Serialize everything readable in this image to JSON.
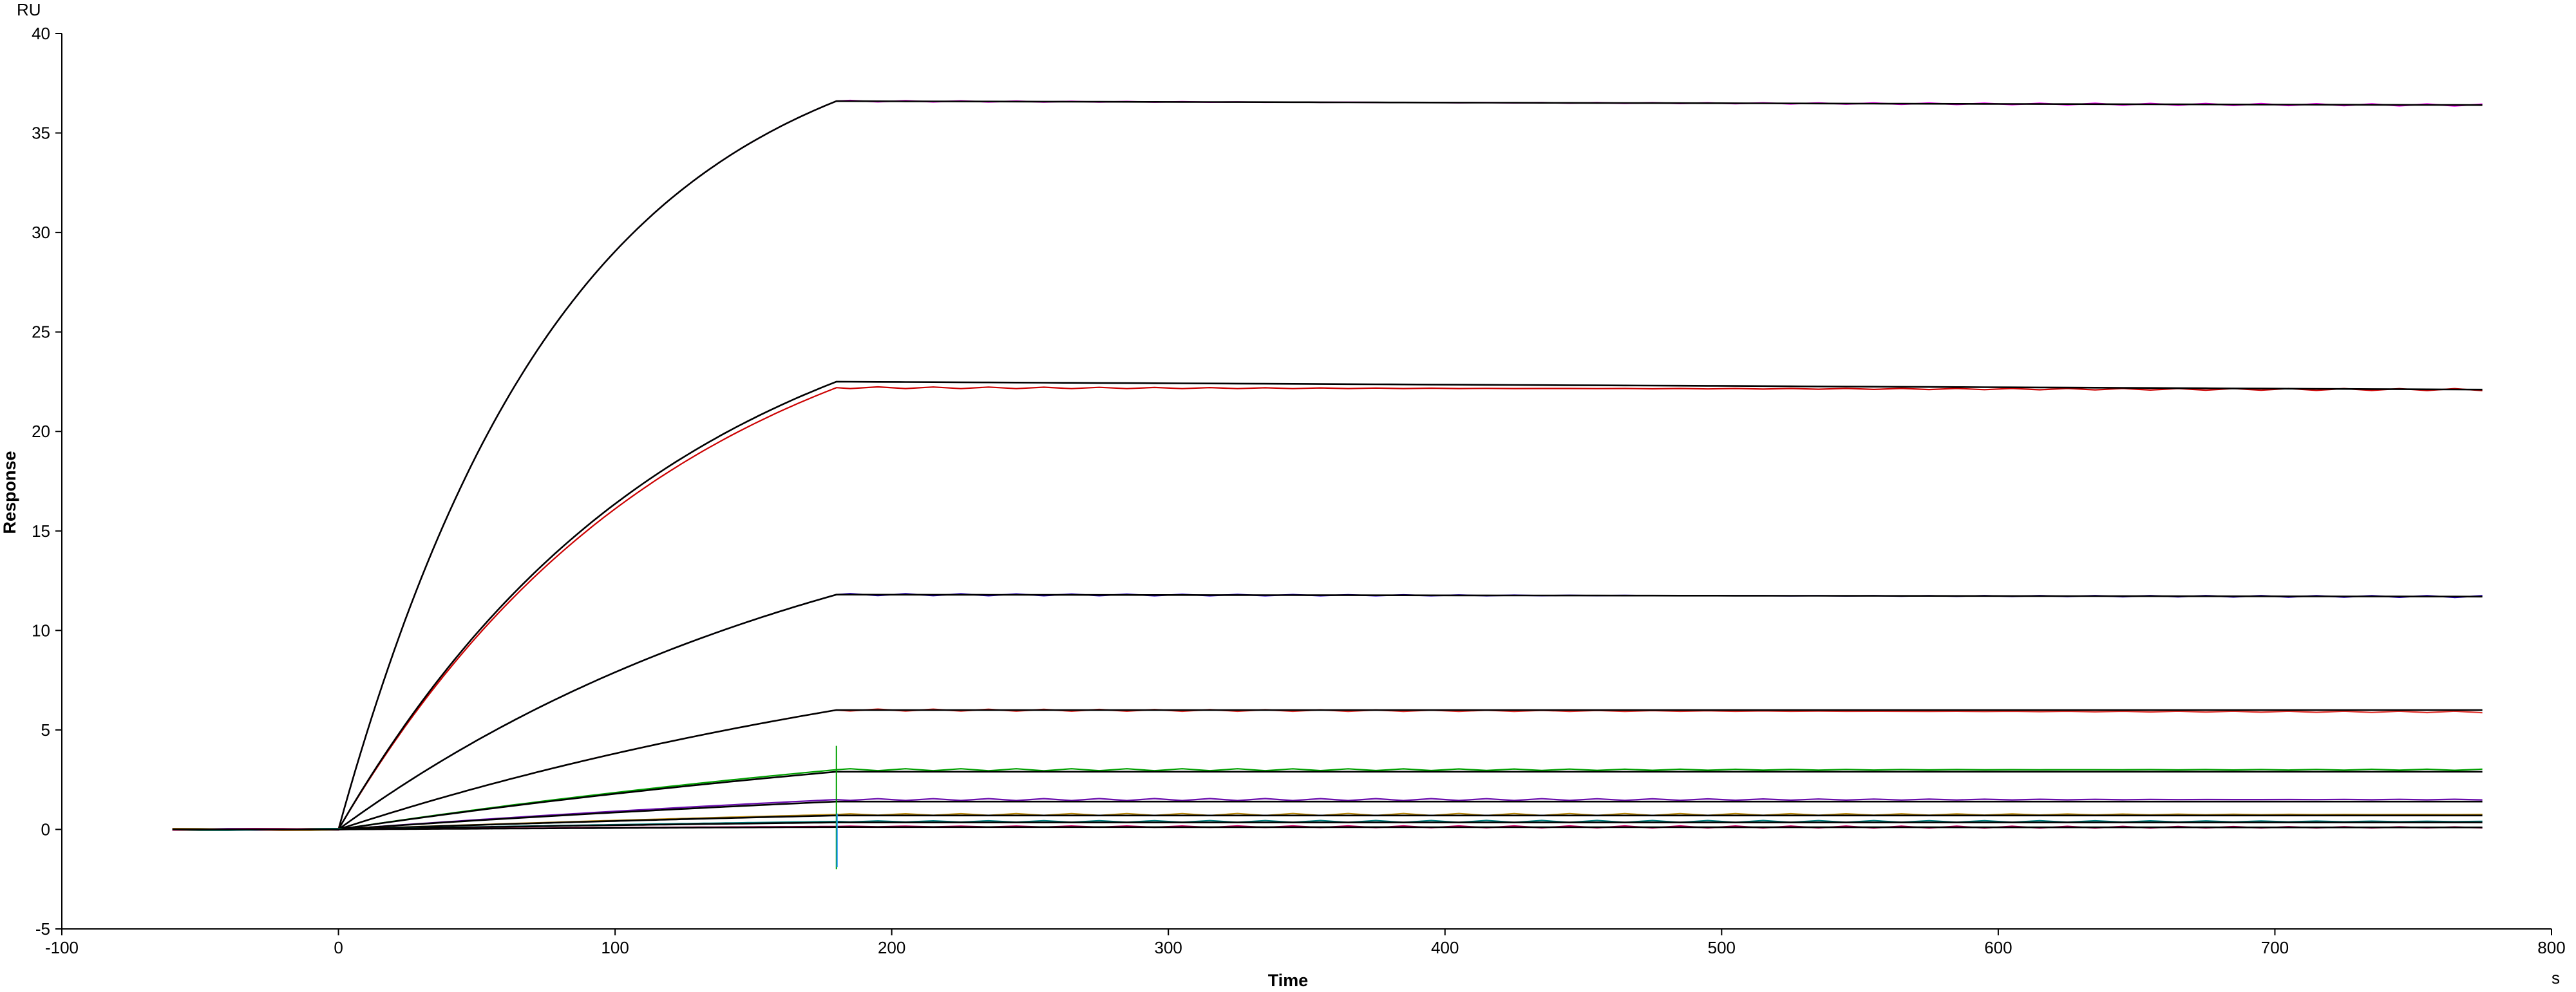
{
  "chart_data": {
    "type": "line",
    "title": "",
    "xlabel": "Time",
    "ylabel": "Response",
    "x_unit": "s",
    "y_unit": "RU",
    "xlim": [
      -100,
      800
    ],
    "ylim": [
      -5,
      40
    ],
    "x_ticks": [
      -100,
      0,
      100,
      200,
      300,
      400,
      500,
      600,
      700,
      800
    ],
    "y_ticks": [
      -5,
      0,
      5,
      10,
      15,
      20,
      25,
      30,
      35,
      40
    ],
    "grid": false,
    "legend": "none",
    "association_end_s": 180,
    "dissociation_end_s": 780,
    "baseline_start_s": -60,
    "series": [
      {
        "color": "#ff00ff",
        "kind": "measured",
        "max_response": 36.6,
        "final_response": 36.4
      },
      {
        "color": "#000000",
        "kind": "fit",
        "max_response": 36.6,
        "final_response": 36.4
      },
      {
        "color": "#cc0000",
        "kind": "measured",
        "max_response": 22.2,
        "final_response": 22.1
      },
      {
        "color": "#000000",
        "kind": "fit",
        "max_response": 22.5,
        "final_response": 22.1
      },
      {
        "color": "#2a00cc",
        "kind": "measured",
        "max_response": 11.8,
        "final_response": 11.7
      },
      {
        "color": "#000000",
        "kind": "fit",
        "max_response": 11.8,
        "final_response": 11.7
      },
      {
        "color": "#e0302a",
        "kind": "measured",
        "max_response": 6.0,
        "final_response": 5.9
      },
      {
        "color": "#000000",
        "kind": "fit",
        "max_response": 6.0,
        "final_response": 6.0
      },
      {
        "color": "#00a000",
        "kind": "measured",
        "max_response": 3.0,
        "final_response": 3.0
      },
      {
        "color": "#000000",
        "kind": "fit",
        "max_response": 2.9,
        "final_response": 2.9
      },
      {
        "color": "#6a0dad",
        "kind": "measured",
        "max_response": 1.5,
        "final_response": 1.5
      },
      {
        "color": "#000000",
        "kind": "fit",
        "max_response": 1.4,
        "final_response": 1.4
      },
      {
        "color": "#b8860b",
        "kind": "measured",
        "max_response": 0.75,
        "final_response": 0.75
      },
      {
        "color": "#000000",
        "kind": "fit",
        "max_response": 0.7,
        "final_response": 0.7
      },
      {
        "color": "#008080",
        "kind": "measured",
        "max_response": 0.4,
        "final_response": 0.4
      },
      {
        "color": "#000000",
        "kind": "fit",
        "max_response": 0.35,
        "final_response": 0.35
      },
      {
        "color": "#cc0066",
        "kind": "measured",
        "max_response": 0.15,
        "final_response": 0.1
      },
      {
        "color": "#000000",
        "kind": "fit",
        "max_response": 0.12,
        "final_response": 0.1
      }
    ]
  }
}
